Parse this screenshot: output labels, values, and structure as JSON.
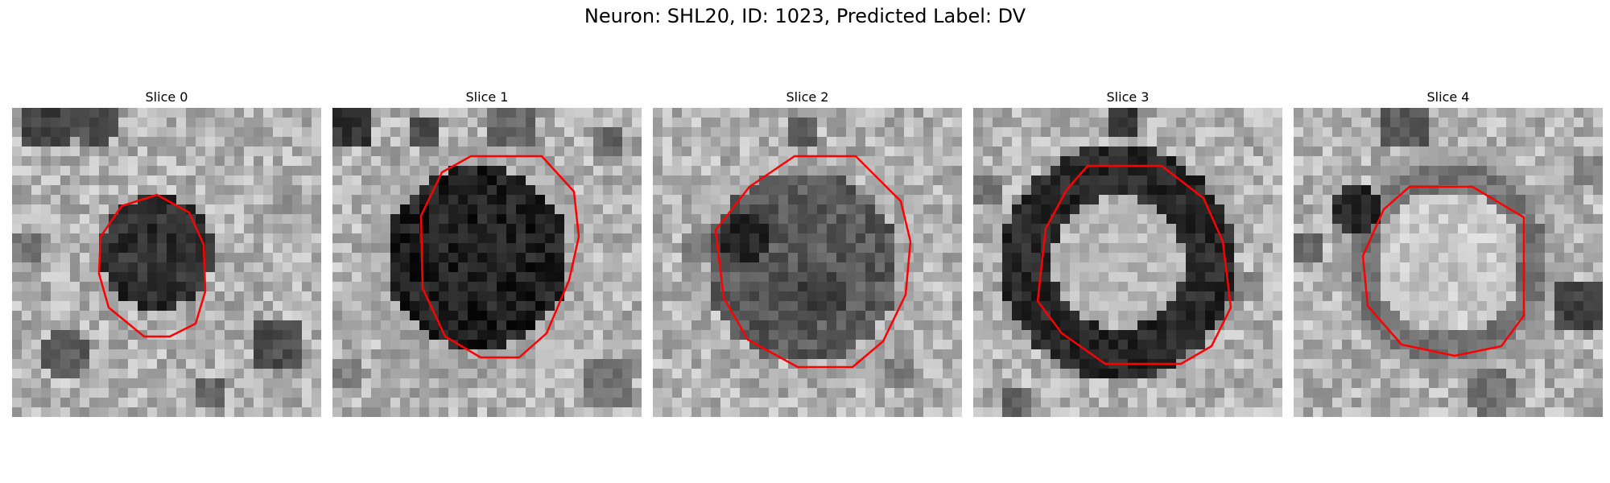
{
  "figure": {
    "title": "Neuron: SHL20, ID: 1023, Predicted Label: DV"
  },
  "colors": {
    "contour": "#ff0000",
    "background": "#ffffff"
  },
  "slices": [
    {
      "label": "Slice 0"
    },
    {
      "label": "Slice 1"
    },
    {
      "label": "Slice 2"
    },
    {
      "label": "Slice 3"
    },
    {
      "label": "Slice 4"
    }
  ]
}
